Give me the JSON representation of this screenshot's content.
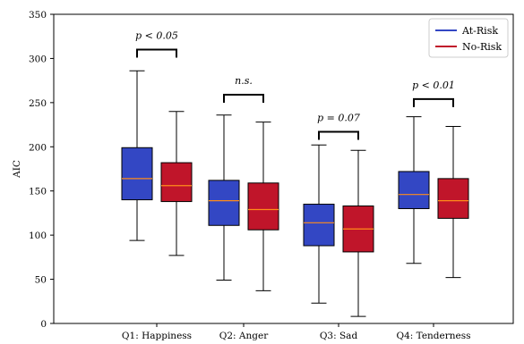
{
  "chart_data": {
    "type": "box",
    "title": "",
    "xlabel": "",
    "ylabel": "AIC",
    "ylim": [
      0,
      350
    ],
    "yticks": [
      0,
      50,
      100,
      150,
      200,
      250,
      300,
      350
    ],
    "categories": [
      "Q1: Happiness",
      "Q2: Anger",
      "Q3: Sad",
      "Q4: Tenderness"
    ],
    "legend": {
      "position": "top-right"
    },
    "median_color": "#ff8c1a",
    "series": [
      {
        "name": "At-Risk",
        "color": "#3347c4",
        "boxes": [
          {
            "whisker_low": 94,
            "q1": 140,
            "median": 164,
            "q3": 199,
            "whisker_high": 286
          },
          {
            "whisker_low": 49,
            "q1": 111,
            "median": 139,
            "q3": 162,
            "whisker_high": 236
          },
          {
            "whisker_low": 23,
            "q1": 88,
            "median": 114,
            "q3": 135,
            "whisker_high": 202
          },
          {
            "whisker_low": 68,
            "q1": 130,
            "median": 146,
            "q3": 172,
            "whisker_high": 234
          }
        ]
      },
      {
        "name": "No-Risk",
        "color": "#c0152a",
        "boxes": [
          {
            "whisker_low": 77,
            "q1": 138,
            "median": 156,
            "q3": 182,
            "whisker_high": 240
          },
          {
            "whisker_low": 37,
            "q1": 106,
            "median": 129,
            "q3": 159,
            "whisker_high": 228
          },
          {
            "whisker_low": 8,
            "q1": 81,
            "median": 107,
            "q3": 133,
            "whisker_high": 196
          },
          {
            "whisker_low": 52,
            "q1": 119,
            "median": 139,
            "q3": 164,
            "whisker_high": 223
          }
        ]
      }
    ],
    "annotations": [
      {
        "category": 0,
        "y": 310,
        "text": "p < 0.05"
      },
      {
        "category": 1,
        "y": 259,
        "text": "n.s."
      },
      {
        "category": 2,
        "y": 217,
        "text": "p = 0.07"
      },
      {
        "category": 3,
        "y": 254,
        "text": "p < 0.01"
      }
    ]
  }
}
